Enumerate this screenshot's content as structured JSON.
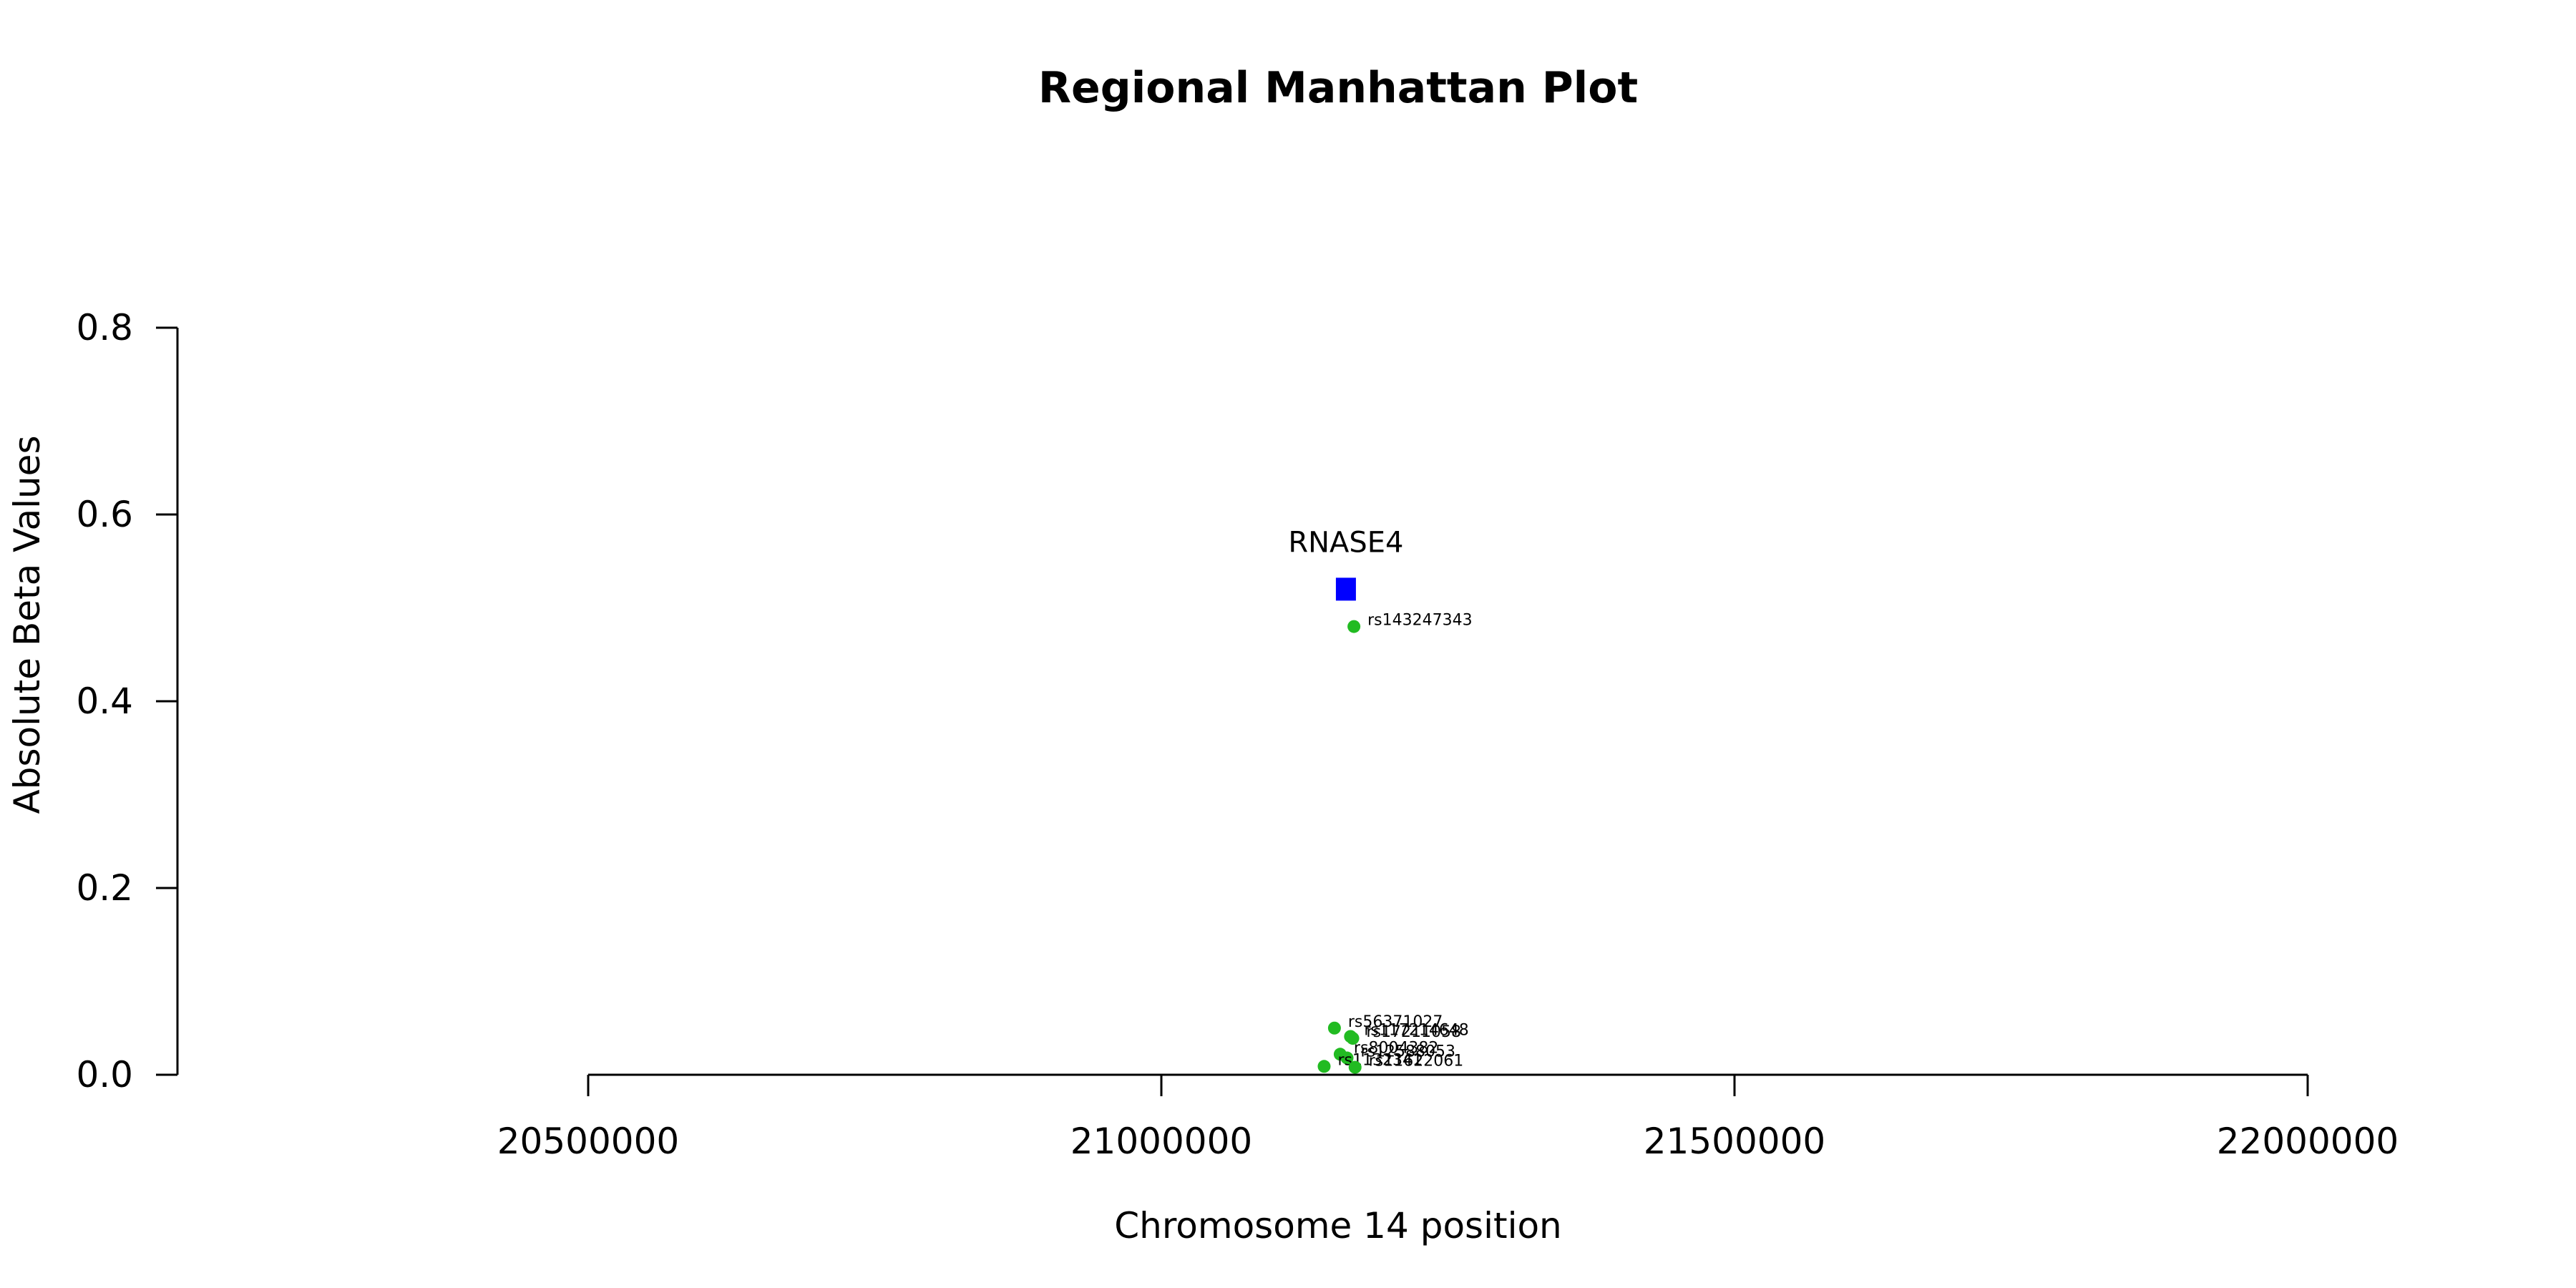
{
  "chart_data": {
    "type": "scatter",
    "title": "Regional Manhattan Plot",
    "xlabel": "Chromosome 14 position",
    "ylabel": "Absolute Beta Values",
    "xlim": [
      20500000,
      22000000
    ],
    "ylim": [
      0,
      0.8
    ],
    "xticks": [
      20500000,
      21000000,
      21500000,
      22000000
    ],
    "yticks": [
      0.0,
      0.2,
      0.4,
      0.6,
      0.8
    ],
    "grid": false,
    "gene": {
      "name": "RNASE4",
      "x": 21161000,
      "y": 0.52,
      "color": "#0000ff"
    },
    "snp_color": "#22bb22",
    "points": [
      {
        "label": "rs143247343",
        "x": 21168000,
        "y": 0.48
      },
      {
        "label": "rs56371027",
        "x": 21151000,
        "y": 0.05
      },
      {
        "label": "rs117214648",
        "x": 21165000,
        "y": 0.041
      },
      {
        "label": "rs17211058",
        "x": 21167000,
        "y": 0.039
      },
      {
        "label": "rs8004382",
        "x": 21156000,
        "y": 0.022
      },
      {
        "label": "rs12588053",
        "x": 21162000,
        "y": 0.018
      },
      {
        "label": "rs1132341",
        "x": 21142000,
        "y": 0.009
      },
      {
        "label": "rs11622061",
        "x": 21169000,
        "y": 0.008
      }
    ]
  }
}
